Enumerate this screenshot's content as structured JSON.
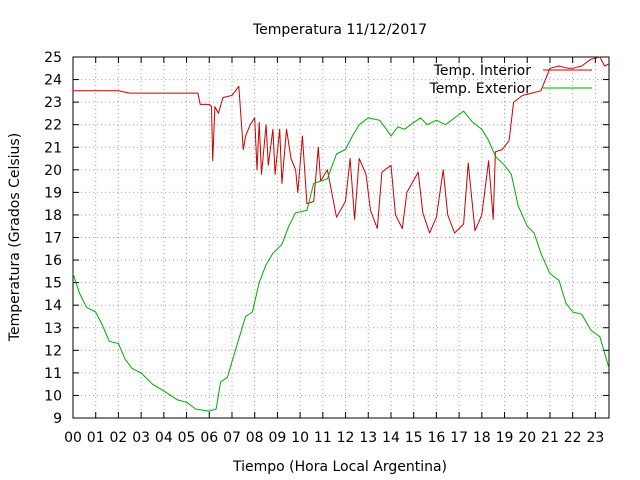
{
  "chart_data": {
    "type": "line",
    "title": "Temperatura 11/12/2017",
    "xlabel": "Tiempo (Hora Local Argentina)",
    "ylabel": "Temperatura (Grados Celsius)",
    "xlim": [
      0,
      23.6
    ],
    "ylim": [
      9,
      25
    ],
    "x_ticks": [
      "00",
      "01",
      "02",
      "03",
      "04",
      "05",
      "06",
      "07",
      "08",
      "09",
      "10",
      "11",
      "12",
      "13",
      "14",
      "15",
      "16",
      "17",
      "18",
      "19",
      "20",
      "21",
      "22",
      "23"
    ],
    "y_ticks": [
      "9",
      "10",
      "11",
      "12",
      "13",
      "14",
      "15",
      "16",
      "17",
      "18",
      "19",
      "20",
      "21",
      "22",
      "23",
      "24",
      "25"
    ],
    "grid": true,
    "legend_position": "top-right",
    "series": [
      {
        "name": "Temp. Interior",
        "color": "#cc0000",
        "points": [
          [
            0,
            23.5
          ],
          [
            1,
            23.5
          ],
          [
            2,
            23.5
          ],
          [
            2.5,
            23.4
          ],
          [
            3,
            23.4
          ],
          [
            3.5,
            23.4
          ],
          [
            4,
            23.4
          ],
          [
            4.5,
            23.4
          ],
          [
            5,
            23.4
          ],
          [
            5.5,
            23.4
          ],
          [
            5.6,
            22.9
          ],
          [
            6,
            22.9
          ],
          [
            6.1,
            22.8
          ],
          [
            6.15,
            20.4
          ],
          [
            6.25,
            22.8
          ],
          [
            6.4,
            22.5
          ],
          [
            6.6,
            23.2
          ],
          [
            7,
            23.3
          ],
          [
            7.3,
            23.7
          ],
          [
            7.5,
            20.9
          ],
          [
            7.6,
            21.5
          ],
          [
            7.8,
            22.0
          ],
          [
            8.0,
            22.3
          ],
          [
            8.1,
            20.0
          ],
          [
            8.2,
            22.1
          ],
          [
            8.3,
            19.8
          ],
          [
            8.5,
            22.0
          ],
          [
            8.6,
            20.2
          ],
          [
            8.8,
            21.8
          ],
          [
            8.9,
            19.8
          ],
          [
            9.0,
            20.8
          ],
          [
            9.1,
            21.8
          ],
          [
            9.2,
            19.4
          ],
          [
            9.4,
            21.8
          ],
          [
            9.6,
            20.5
          ],
          [
            9.8,
            20.0
          ],
          [
            9.9,
            19.0
          ],
          [
            10.1,
            21.5
          ],
          [
            10.3,
            18.5
          ],
          [
            10.6,
            18.6
          ],
          [
            10.8,
            21.0
          ],
          [
            10.9,
            19.5
          ],
          [
            11.2,
            20.0
          ],
          [
            11.6,
            17.9
          ],
          [
            12.0,
            18.6
          ],
          [
            12.2,
            20.5
          ],
          [
            12.4,
            17.8
          ],
          [
            12.6,
            20.5
          ],
          [
            12.9,
            19.8
          ],
          [
            13.1,
            18.2
          ],
          [
            13.4,
            17.4
          ],
          [
            13.6,
            19.9
          ],
          [
            14.0,
            20.2
          ],
          [
            14.2,
            18.0
          ],
          [
            14.5,
            17.4
          ],
          [
            14.7,
            19.0
          ],
          [
            15.2,
            19.9
          ],
          [
            15.4,
            18.1
          ],
          [
            15.7,
            17.2
          ],
          [
            16.0,
            17.9
          ],
          [
            16.3,
            20.0
          ],
          [
            16.5,
            18.0
          ],
          [
            16.8,
            17.2
          ],
          [
            17.2,
            17.6
          ],
          [
            17.4,
            20.3
          ],
          [
            17.7,
            17.3
          ],
          [
            18.0,
            18.0
          ],
          [
            18.3,
            20.4
          ],
          [
            18.5,
            17.8
          ],
          [
            18.6,
            20.8
          ],
          [
            18.9,
            20.9
          ],
          [
            19.2,
            21.3
          ],
          [
            19.4,
            23.0
          ],
          [
            19.8,
            23.3
          ],
          [
            20.2,
            23.4
          ],
          [
            20.6,
            23.5
          ],
          [
            21.0,
            24.5
          ],
          [
            21.4,
            24.6
          ],
          [
            21.8,
            24.5
          ],
          [
            22.0,
            24.5
          ],
          [
            22.4,
            24.6
          ],
          [
            22.8,
            24.9
          ],
          [
            23.2,
            25.0
          ],
          [
            23.4,
            24.6
          ],
          [
            23.6,
            24.7
          ]
        ]
      },
      {
        "name": "Temp. Exterior",
        "color": "#00aa00",
        "points": [
          [
            0,
            15.4
          ],
          [
            0.3,
            14.5
          ],
          [
            0.6,
            13.9
          ],
          [
            1.0,
            13.7
          ],
          [
            1.3,
            13.1
          ],
          [
            1.6,
            12.4
          ],
          [
            2.0,
            12.3
          ],
          [
            2.3,
            11.6
          ],
          [
            2.6,
            11.2
          ],
          [
            3.0,
            11.0
          ],
          [
            3.5,
            10.5
          ],
          [
            4.0,
            10.2
          ],
          [
            4.3,
            10.0
          ],
          [
            4.6,
            9.8
          ],
          [
            5.0,
            9.7
          ],
          [
            5.4,
            9.4
          ],
          [
            6.0,
            9.3
          ],
          [
            6.3,
            9.4
          ],
          [
            6.5,
            10.6
          ],
          [
            6.8,
            10.8
          ],
          [
            7.0,
            11.5
          ],
          [
            7.3,
            12.5
          ],
          [
            7.6,
            13.5
          ],
          [
            7.9,
            13.7
          ],
          [
            8.2,
            15.0
          ],
          [
            8.5,
            15.8
          ],
          [
            8.8,
            16.3
          ],
          [
            9.2,
            16.7
          ],
          [
            9.5,
            17.5
          ],
          [
            9.8,
            18.1
          ],
          [
            10.3,
            18.2
          ],
          [
            10.6,
            19.4
          ],
          [
            11.2,
            19.6
          ],
          [
            11.6,
            20.7
          ],
          [
            12.0,
            20.9
          ],
          [
            12.3,
            21.5
          ],
          [
            12.6,
            22.0
          ],
          [
            13.0,
            22.3
          ],
          [
            13.5,
            22.2
          ],
          [
            13.8,
            21.8
          ],
          [
            14.0,
            21.5
          ],
          [
            14.3,
            21.9
          ],
          [
            14.6,
            21.8
          ],
          [
            15.0,
            22.1
          ],
          [
            15.3,
            22.3
          ],
          [
            15.6,
            22.0
          ],
          [
            16.0,
            22.2
          ],
          [
            16.4,
            22.0
          ],
          [
            16.8,
            22.3
          ],
          [
            17.2,
            22.6
          ],
          [
            17.6,
            22.1
          ],
          [
            18.0,
            21.8
          ],
          [
            18.3,
            21.3
          ],
          [
            18.6,
            20.6
          ],
          [
            19.0,
            20.2
          ],
          [
            19.3,
            19.8
          ],
          [
            19.6,
            18.4
          ],
          [
            20.0,
            17.5
          ],
          [
            20.3,
            17.2
          ],
          [
            20.6,
            16.3
          ],
          [
            21.0,
            15.4
          ],
          [
            21.4,
            15.1
          ],
          [
            21.7,
            14.1
          ],
          [
            22.0,
            13.7
          ],
          [
            22.4,
            13.6
          ],
          [
            22.8,
            12.9
          ],
          [
            23.2,
            12.6
          ],
          [
            23.4,
            11.9
          ],
          [
            23.6,
            11.2
          ]
        ]
      }
    ]
  }
}
